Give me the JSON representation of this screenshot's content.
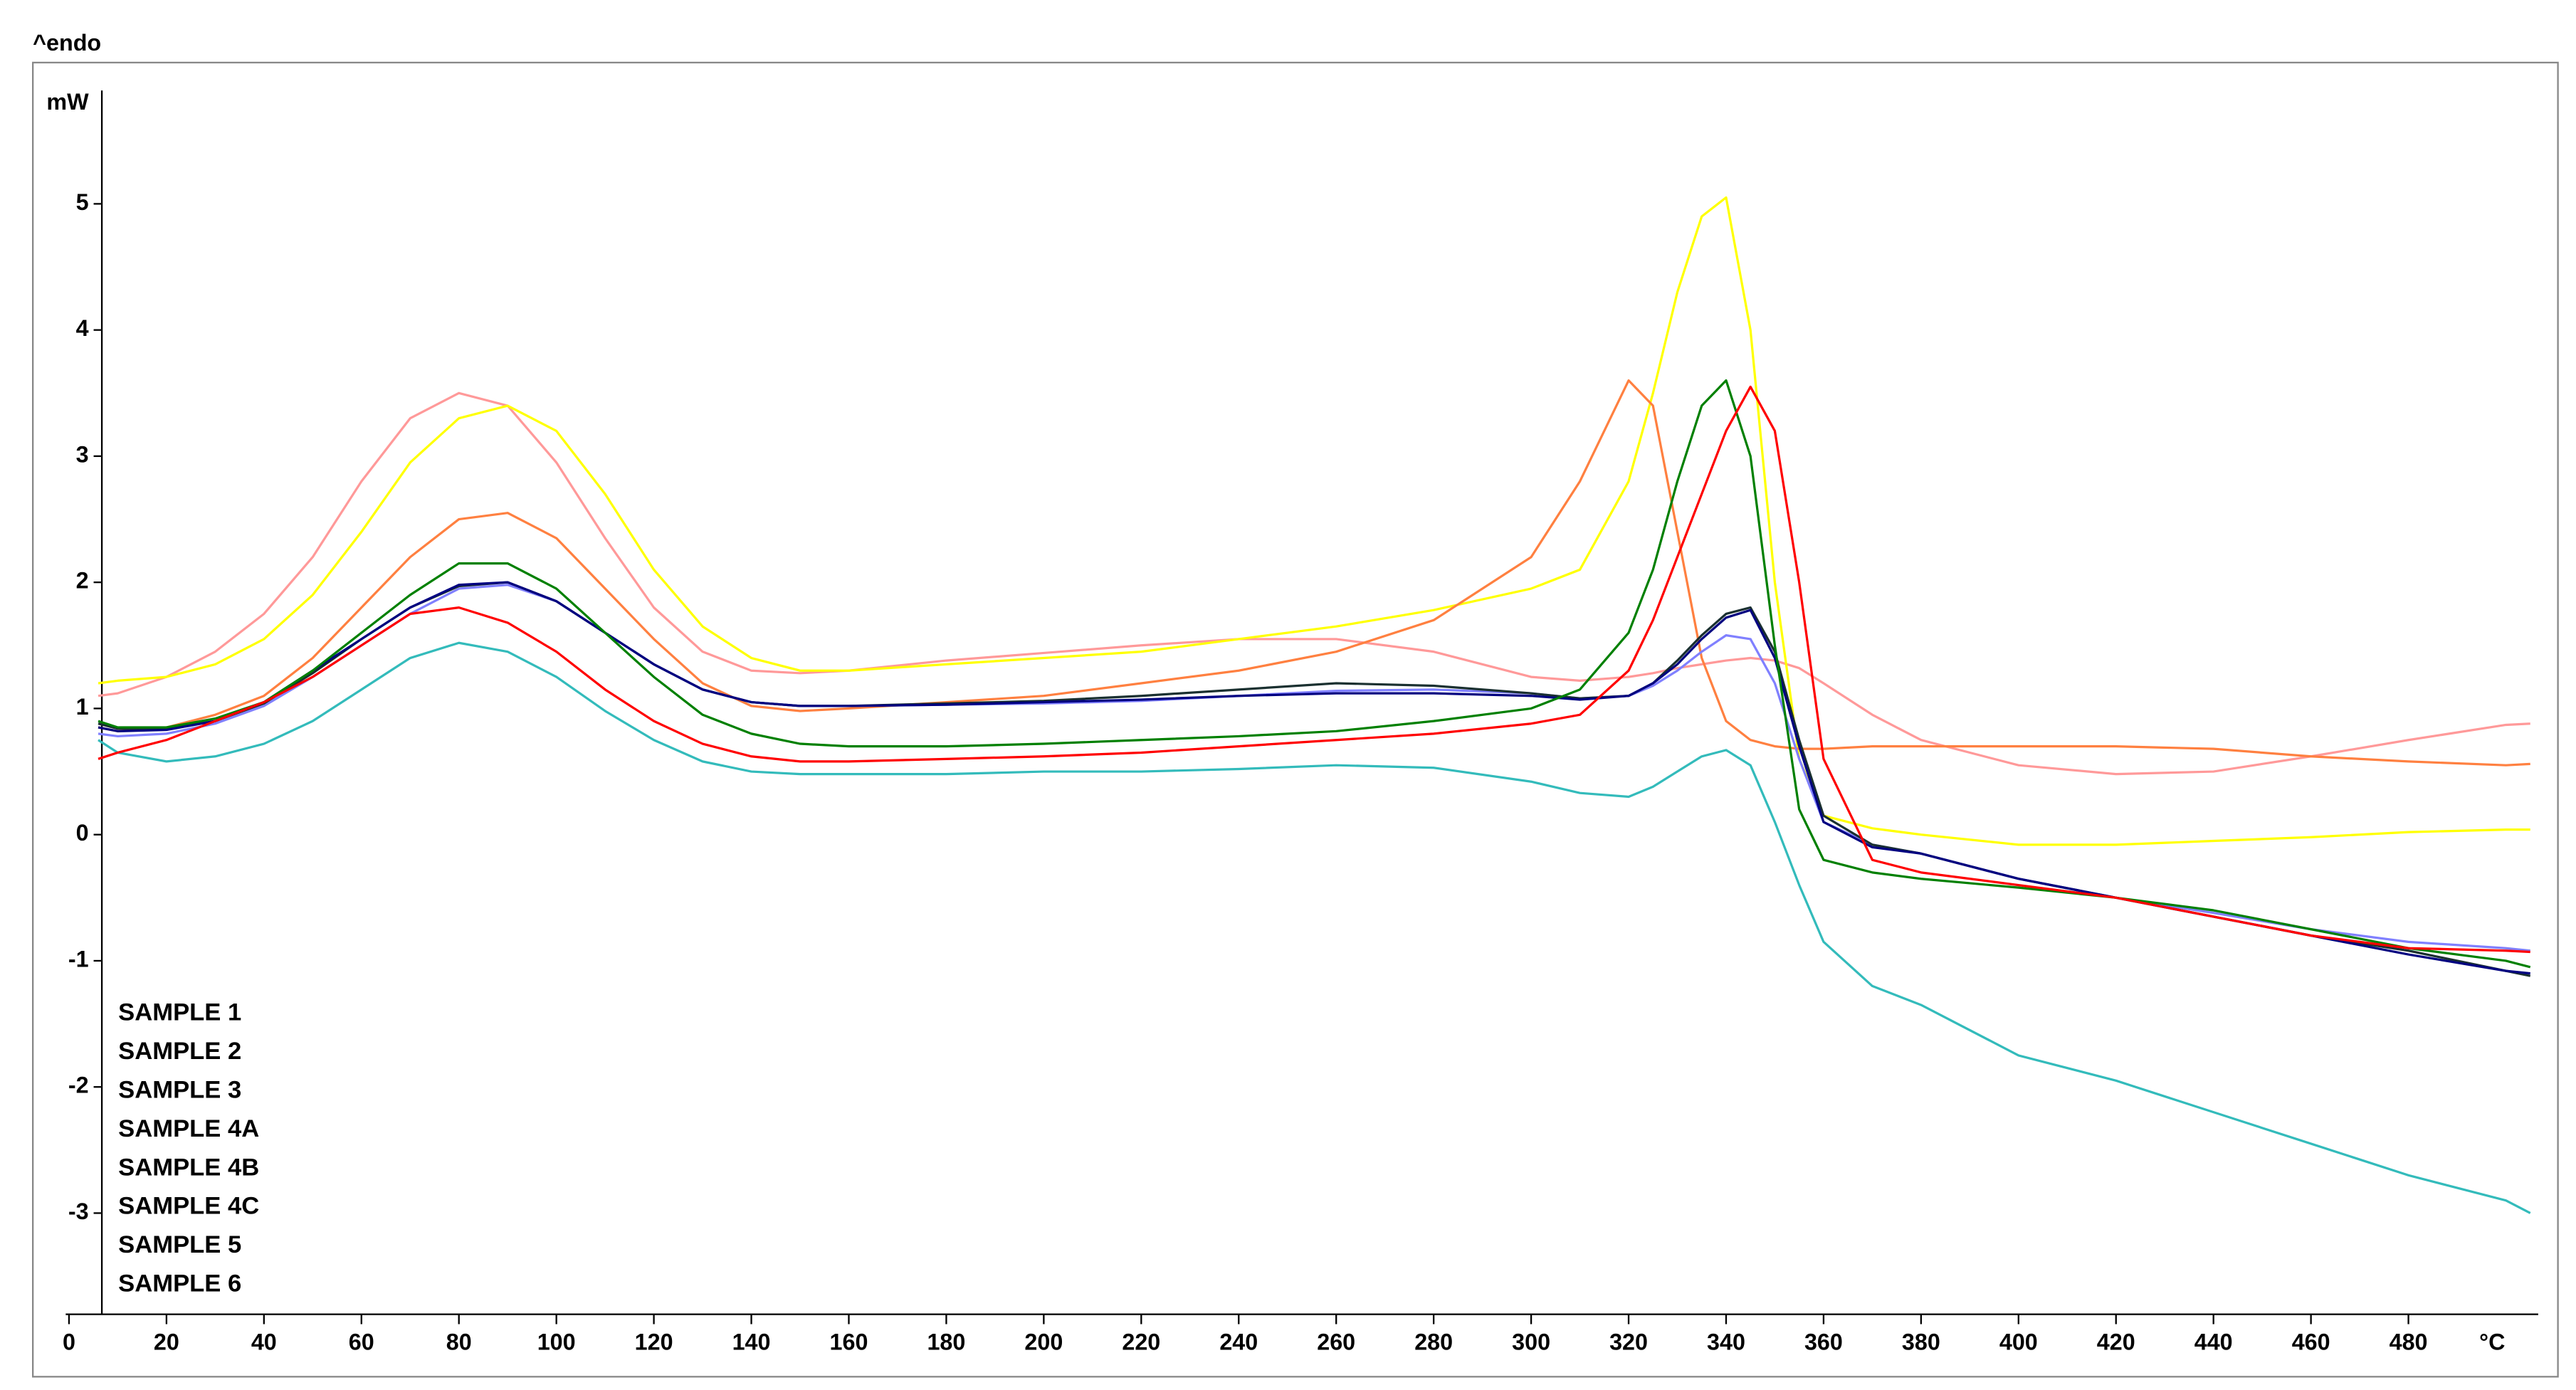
{
  "chart_data": {
    "type": "line",
    "annotation": "^endo",
    "y_label": "mW",
    "x_label": "°C",
    "legend": "lower left",
    "xlim": [
      0,
      507
    ],
    "ylim": [
      -3.8,
      5.8
    ],
    "xticks": [
      0,
      20,
      40,
      60,
      80,
      100,
      120,
      140,
      160,
      180,
      200,
      220,
      240,
      260,
      280,
      300,
      320,
      340,
      360,
      380,
      400,
      420,
      440,
      460,
      480
    ],
    "yticks": [
      -3,
      -2,
      -1,
      0,
      1,
      2,
      3,
      4,
      5
    ],
    "x": [
      6,
      10,
      20,
      30,
      40,
      50,
      60,
      70,
      80,
      90,
      100,
      110,
      120,
      130,
      140,
      150,
      160,
      180,
      200,
      220,
      240,
      260,
      280,
      300,
      310,
      320,
      325,
      330,
      335,
      340,
      345,
      350,
      355,
      360,
      370,
      380,
      400,
      420,
      440,
      460,
      480,
      500,
      505
    ],
    "series": [
      {
        "color": "#33bbbb",
        "values": [
          0.75,
          0.65,
          0.58,
          0.62,
          0.72,
          0.9,
          1.15,
          1.4,
          1.52,
          1.45,
          1.25,
          0.98,
          0.75,
          0.58,
          0.5,
          0.48,
          0.48,
          0.48,
          0.5,
          0.5,
          0.52,
          0.55,
          0.53,
          0.42,
          0.33,
          0.3,
          0.38,
          0.5,
          0.62,
          0.67,
          0.55,
          0.1,
          -0.4,
          -0.85,
          -1.2,
          -1.35,
          -1.75,
          -1.95,
          -2.2,
          -2.45,
          -2.7,
          -2.9,
          -3.0
        ]
      },
      {
        "name": "SAMPLE 6",
        "color": "#ff9999",
        "values": [
          1.1,
          1.12,
          1.25,
          1.45,
          1.75,
          2.2,
          2.8,
          3.3,
          3.5,
          3.4,
          2.95,
          2.35,
          1.8,
          1.45,
          1.3,
          1.28,
          1.3,
          1.38,
          1.44,
          1.5,
          1.55,
          1.55,
          1.45,
          1.25,
          1.22,
          1.25,
          1.28,
          1.32,
          1.35,
          1.38,
          1.4,
          1.38,
          1.32,
          1.2,
          0.95,
          0.75,
          0.55,
          0.48,
          0.5,
          0.62,
          0.75,
          0.87,
          0.88
        ]
      },
      {
        "name": "SAMPLE 5",
        "color": "#ffff00",
        "values": [
          1.2,
          1.22,
          1.25,
          1.35,
          1.55,
          1.9,
          2.4,
          2.95,
          3.3,
          3.4,
          3.2,
          2.7,
          2.1,
          1.65,
          1.4,
          1.3,
          1.3,
          1.35,
          1.4,
          1.45,
          1.55,
          1.65,
          1.78,
          1.95,
          2.1,
          2.8,
          3.5,
          4.3,
          4.9,
          5.05,
          4.0,
          2.0,
          0.6,
          0.15,
          0.05,
          0.0,
          -0.08,
          -0.08,
          -0.05,
          -0.02,
          0.02,
          0.04,
          0.04
        ]
      },
      {
        "name": "SAMPLE 3",
        "color": "#ff8040",
        "values": [
          0.85,
          0.82,
          0.85,
          0.95,
          1.1,
          1.4,
          1.8,
          2.2,
          2.5,
          2.55,
          2.35,
          1.95,
          1.55,
          1.2,
          1.02,
          0.98,
          1.0,
          1.05,
          1.1,
          1.2,
          1.3,
          1.45,
          1.7,
          2.2,
          2.8,
          3.6,
          3.4,
          2.4,
          1.4,
          0.9,
          0.75,
          0.7,
          0.68,
          0.68,
          0.7,
          0.7,
          0.7,
          0.7,
          0.68,
          0.62,
          0.58,
          0.55,
          0.56
        ]
      },
      {
        "name": "SAMPLE 4B",
        "color": "#8080ff",
        "values": [
          0.8,
          0.78,
          0.8,
          0.88,
          1.02,
          1.25,
          1.5,
          1.75,
          1.95,
          1.98,
          1.85,
          1.6,
          1.35,
          1.15,
          1.05,
          1.02,
          1.02,
          1.03,
          1.04,
          1.06,
          1.1,
          1.14,
          1.15,
          1.12,
          1.08,
          1.1,
          1.18,
          1.3,
          1.45,
          1.58,
          1.55,
          1.2,
          0.6,
          0.1,
          -0.08,
          -0.15,
          -0.35,
          -0.5,
          -0.62,
          -0.75,
          -0.85,
          -0.9,
          -0.92
        ]
      },
      {
        "name": "SAMPLE 4C",
        "color": "#1a3030",
        "values": [
          0.88,
          0.84,
          0.84,
          0.9,
          1.04,
          1.28,
          1.55,
          1.8,
          1.97,
          2.0,
          1.85,
          1.6,
          1.35,
          1.15,
          1.05,
          1.02,
          1.02,
          1.04,
          1.06,
          1.1,
          1.15,
          1.2,
          1.18,
          1.12,
          1.08,
          1.1,
          1.2,
          1.38,
          1.58,
          1.75,
          1.8,
          1.45,
          0.75,
          0.15,
          -0.08,
          -0.15,
          -0.35,
          -0.5,
          -0.65,
          -0.8,
          -0.92,
          -1.08,
          -1.12
        ]
      },
      {
        "name": "SAMPLE 4A",
        "color": "#000080",
        "values": [
          0.85,
          0.82,
          0.83,
          0.9,
          1.05,
          1.3,
          1.55,
          1.8,
          1.98,
          2.0,
          1.85,
          1.6,
          1.35,
          1.15,
          1.05,
          1.02,
          1.02,
          1.03,
          1.05,
          1.07,
          1.1,
          1.12,
          1.12,
          1.1,
          1.07,
          1.1,
          1.2,
          1.35,
          1.55,
          1.72,
          1.78,
          1.4,
          0.7,
          0.1,
          -0.1,
          -0.15,
          -0.35,
          -0.5,
          -0.65,
          -0.8,
          -0.95,
          -1.08,
          -1.1
        ]
      },
      {
        "name": "SAMPLE 2",
        "color": "#008000",
        "values": [
          0.9,
          0.85,
          0.85,
          0.92,
          1.05,
          1.3,
          1.6,
          1.9,
          2.15,
          2.15,
          1.95,
          1.6,
          1.25,
          0.95,
          0.8,
          0.72,
          0.7,
          0.7,
          0.72,
          0.75,
          0.78,
          0.82,
          0.9,
          1.0,
          1.15,
          1.6,
          2.1,
          2.8,
          3.4,
          3.6,
          3.0,
          1.5,
          0.2,
          -0.2,
          -0.3,
          -0.35,
          -0.42,
          -0.5,
          -0.6,
          -0.75,
          -0.9,
          -1.0,
          -1.05
        ]
      },
      {
        "name": "SAMPLE 1",
        "color": "#ff0000",
        "values": [
          0.6,
          0.65,
          0.75,
          0.9,
          1.05,
          1.25,
          1.5,
          1.75,
          1.8,
          1.68,
          1.45,
          1.15,
          0.9,
          0.72,
          0.62,
          0.58,
          0.58,
          0.6,
          0.62,
          0.65,
          0.7,
          0.75,
          0.8,
          0.88,
          0.95,
          1.3,
          1.7,
          2.2,
          2.7,
          3.2,
          3.55,
          3.2,
          2.0,
          0.6,
          -0.2,
          -0.3,
          -0.4,
          -0.5,
          -0.65,
          -0.8,
          -0.9,
          -0.92,
          -0.93
        ]
      }
    ],
    "legend_order": [
      "SAMPLE 1",
      "SAMPLE 2",
      "SAMPLE 3",
      "SAMPLE 4A",
      "SAMPLE 4B",
      "SAMPLE 4C",
      "SAMPLE 5",
      "SAMPLE 6"
    ]
  }
}
